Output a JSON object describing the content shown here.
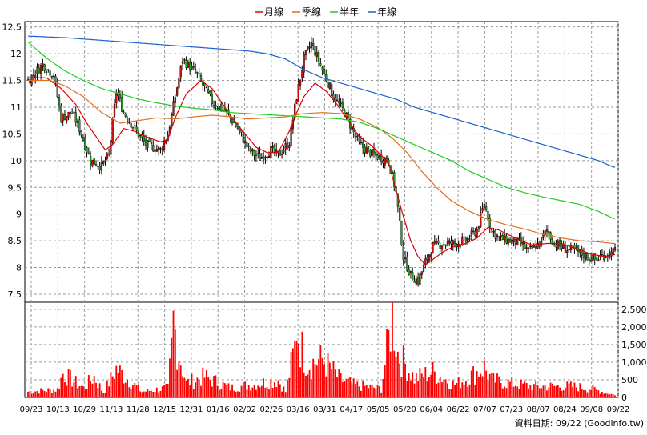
{
  "chart_data": {
    "type": "candlestick_with_volume",
    "legend": {
      "placement": "top-center",
      "entries": [
        {
          "label": "月線",
          "color": "#dd0000"
        },
        {
          "label": "季線",
          "color": "#e07020"
        },
        {
          "label": "半年",
          "color": "#22cc22"
        },
        {
          "label": "年線",
          "color": "#1a5fd0"
        }
      ]
    },
    "price_axis": {
      "ylim": [
        7.35,
        12.6
      ],
      "ticks": [
        "12.5",
        "12",
        "11.5",
        "11",
        "10.5",
        "10",
        "9.5",
        "9",
        "8.5",
        "8",
        "7.5"
      ],
      "tick_values": [
        12.5,
        12,
        11.5,
        11,
        10.5,
        10,
        9.5,
        9,
        8.5,
        8,
        7.5
      ]
    },
    "volume_axis": {
      "ylim": [
        0,
        2700
      ],
      "ticks": [
        "2,500",
        "2,000",
        "1,500",
        "1,000",
        "500",
        "0"
      ],
      "tick_values": [
        2500,
        2000,
        1500,
        1000,
        500,
        0
      ]
    },
    "x_ticks": [
      "09/23",
      "10/13",
      "10/29",
      "11/13",
      "11/28",
      "12/15",
      "12/31",
      "01/16",
      "02/02",
      "02/26",
      "03/16",
      "03/31",
      "04/17",
      "05/05",
      "05/20",
      "06/04",
      "06/22",
      "07/07",
      "07/23",
      "08/07",
      "08/24",
      "09/08",
      "09/22"
    ],
    "grid": true,
    "price_anchors": [
      [
        0,
        11.5
      ],
      [
        8,
        11.8
      ],
      [
        14,
        11.6
      ],
      [
        18,
        10.8
      ],
      [
        24,
        10.9
      ],
      [
        28,
        10.6
      ],
      [
        34,
        10.0
      ],
      [
        40,
        9.9
      ],
      [
        44,
        10.1
      ],
      [
        48,
        11.3
      ],
      [
        52,
        10.9
      ],
      [
        58,
        10.6
      ],
      [
        64,
        10.3
      ],
      [
        72,
        10.2
      ],
      [
        76,
        10.5
      ],
      [
        80,
        11.2
      ],
      [
        84,
        11.9
      ],
      [
        92,
        11.6
      ],
      [
        100,
        11.1
      ],
      [
        108,
        10.9
      ],
      [
        114,
        10.6
      ],
      [
        120,
        10.2
      ],
      [
        126,
        10.05
      ],
      [
        132,
        10.2
      ],
      [
        136,
        10.1
      ],
      [
        142,
        10.35
      ],
      [
        146,
        11.2
      ],
      [
        150,
        11.9
      ],
      [
        154,
        12.2
      ],
      [
        160,
        11.7
      ],
      [
        166,
        11.2
      ],
      [
        172,
        10.9
      ],
      [
        176,
        10.6
      ],
      [
        180,
        10.3
      ],
      [
        188,
        10.1
      ],
      [
        196,
        10.0
      ],
      [
        200,
        9.4
      ],
      [
        204,
        8.2
      ],
      [
        208,
        7.85
      ],
      [
        212,
        7.75
      ],
      [
        216,
        8.1
      ],
      [
        220,
        8.4
      ],
      [
        226,
        8.45
      ],
      [
        232,
        8.45
      ],
      [
        238,
        8.5
      ],
      [
        244,
        8.7
      ],
      [
        248,
        9.2
      ],
      [
        252,
        8.7
      ],
      [
        256,
        8.55
      ],
      [
        262,
        8.5
      ],
      [
        268,
        8.45
      ],
      [
        272,
        8.3
      ],
      [
        278,
        8.45
      ],
      [
        282,
        8.7
      ],
      [
        286,
        8.45
      ],
      [
        292,
        8.35
      ],
      [
        298,
        8.3
      ],
      [
        304,
        8.2
      ],
      [
        308,
        8.15
      ],
      [
        314,
        8.25
      ],
      [
        318,
        8.3
      ]
    ],
    "volume_anchors": [
      [
        0,
        180
      ],
      [
        16,
        250
      ],
      [
        19,
        750
      ],
      [
        30,
        300
      ],
      [
        36,
        650
      ],
      [
        41,
        150
      ],
      [
        48,
        900
      ],
      [
        62,
        180
      ],
      [
        76,
        300
      ],
      [
        78,
        1500
      ],
      [
        79,
        2400
      ],
      [
        81,
        1650
      ],
      [
        86,
        450
      ],
      [
        96,
        650
      ],
      [
        110,
        300
      ],
      [
        122,
        400
      ],
      [
        136,
        550
      ],
      [
        140,
        180
      ],
      [
        145,
        1550
      ],
      [
        146,
        2300
      ],
      [
        148,
        1650
      ],
      [
        152,
        1050
      ],
      [
        160,
        1200
      ],
      [
        170,
        550
      ],
      [
        178,
        380
      ],
      [
        192,
        280
      ],
      [
        198,
        2600
      ],
      [
        201,
        1400
      ],
      [
        210,
        600
      ],
      [
        220,
        800
      ],
      [
        232,
        400
      ],
      [
        240,
        650
      ],
      [
        248,
        950
      ],
      [
        252,
        550
      ],
      [
        262,
        450
      ],
      [
        274,
        350
      ],
      [
        286,
        350
      ],
      [
        296,
        350
      ],
      [
        306,
        280
      ],
      [
        318,
        90
      ]
    ],
    "series": [
      {
        "name": "月線",
        "anchors": [
          [
            0,
            11.55
          ],
          [
            10,
            11.55
          ],
          [
            18,
            11.35
          ],
          [
            26,
            11.05
          ],
          [
            32,
            10.7
          ],
          [
            38,
            10.4
          ],
          [
            42,
            10.2
          ],
          [
            46,
            10.3
          ],
          [
            52,
            10.6
          ],
          [
            58,
            10.55
          ],
          [
            64,
            10.45
          ],
          [
            72,
            10.35
          ],
          [
            76,
            10.4
          ],
          [
            80,
            10.8
          ],
          [
            86,
            11.25
          ],
          [
            94,
            11.5
          ],
          [
            100,
            11.35
          ],
          [
            106,
            11.05
          ],
          [
            112,
            10.75
          ],
          [
            118,
            10.5
          ],
          [
            124,
            10.25
          ],
          [
            130,
            10.15
          ],
          [
            136,
            10.15
          ],
          [
            142,
            10.55
          ],
          [
            146,
            10.9
          ],
          [
            150,
            11.2
          ],
          [
            156,
            11.45
          ],
          [
            162,
            11.3
          ],
          [
            168,
            11.05
          ],
          [
            174,
            10.75
          ],
          [
            180,
            10.45
          ],
          [
            186,
            10.3
          ],
          [
            192,
            10.1
          ],
          [
            196,
            9.95
          ],
          [
            200,
            9.45
          ],
          [
            204,
            8.95
          ],
          [
            208,
            8.5
          ],
          [
            212,
            8.2
          ],
          [
            216,
            8.05
          ],
          [
            220,
            8.15
          ],
          [
            226,
            8.3
          ],
          [
            232,
            8.4
          ],
          [
            238,
            8.45
          ],
          [
            244,
            8.55
          ],
          [
            250,
            8.75
          ],
          [
            256,
            8.7
          ],
          [
            262,
            8.6
          ],
          [
            268,
            8.5
          ],
          [
            274,
            8.42
          ],
          [
            282,
            8.45
          ],
          [
            290,
            8.45
          ],
          [
            298,
            8.35
          ],
          [
            306,
            8.25
          ],
          [
            314,
            8.2
          ],
          [
            318,
            8.24
          ]
        ]
      },
      {
        "name": "季線",
        "anchors": [
          [
            0,
            11.5
          ],
          [
            12,
            11.5
          ],
          [
            20,
            11.4
          ],
          [
            30,
            11.2
          ],
          [
            40,
            10.9
          ],
          [
            50,
            10.7
          ],
          [
            60,
            10.75
          ],
          [
            70,
            10.8
          ],
          [
            80,
            10.78
          ],
          [
            90,
            10.82
          ],
          [
            100,
            10.85
          ],
          [
            110,
            10.82
          ],
          [
            120,
            10.78
          ],
          [
            130,
            10.8
          ],
          [
            140,
            10.82
          ],
          [
            150,
            10.88
          ],
          [
            160,
            10.9
          ],
          [
            170,
            10.88
          ],
          [
            180,
            10.78
          ],
          [
            190,
            10.62
          ],
          [
            198,
            10.42
          ],
          [
            206,
            10.15
          ],
          [
            214,
            9.8
          ],
          [
            222,
            9.5
          ],
          [
            230,
            9.25
          ],
          [
            240,
            9.05
          ],
          [
            250,
            8.9
          ],
          [
            260,
            8.8
          ],
          [
            270,
            8.72
          ],
          [
            280,
            8.62
          ],
          [
            290,
            8.55
          ],
          [
            300,
            8.5
          ],
          [
            310,
            8.48
          ],
          [
            318,
            8.45
          ]
        ]
      },
      {
        "name": "半年",
        "anchors": [
          [
            0,
            12.22
          ],
          [
            10,
            11.92
          ],
          [
            20,
            11.68
          ],
          [
            30,
            11.5
          ],
          [
            40,
            11.35
          ],
          [
            50,
            11.25
          ],
          [
            60,
            11.15
          ],
          [
            70,
            11.08
          ],
          [
            80,
            11.02
          ],
          [
            90,
            10.98
          ],
          [
            100,
            10.95
          ],
          [
            110,
            10.9
          ],
          [
            120,
            10.88
          ],
          [
            130,
            10.86
          ],
          [
            140,
            10.84
          ],
          [
            150,
            10.82
          ],
          [
            160,
            10.8
          ],
          [
            170,
            10.78
          ],
          [
            180,
            10.72
          ],
          [
            190,
            10.6
          ],
          [
            200,
            10.45
          ],
          [
            210,
            10.3
          ],
          [
            220,
            10.15
          ],
          [
            230,
            10.0
          ],
          [
            240,
            9.8
          ],
          [
            250,
            9.65
          ],
          [
            260,
            9.5
          ],
          [
            270,
            9.4
          ],
          [
            280,
            9.32
          ],
          [
            290,
            9.25
          ],
          [
            300,
            9.18
          ],
          [
            310,
            9.05
          ],
          [
            318,
            8.92
          ]
        ]
      },
      {
        "name": "年線",
        "anchors": [
          [
            0,
            12.33
          ],
          [
            20,
            12.3
          ],
          [
            40,
            12.25
          ],
          [
            60,
            12.2
          ],
          [
            80,
            12.15
          ],
          [
            100,
            12.1
          ],
          [
            120,
            12.05
          ],
          [
            130,
            12.0
          ],
          [
            140,
            11.9
          ],
          [
            150,
            11.7
          ],
          [
            160,
            11.55
          ],
          [
            170,
            11.45
          ],
          [
            180,
            11.35
          ],
          [
            190,
            11.25
          ],
          [
            200,
            11.15
          ],
          [
            210,
            11.0
          ],
          [
            220,
            10.9
          ],
          [
            230,
            10.8
          ],
          [
            240,
            10.7
          ],
          [
            250,
            10.6
          ],
          [
            260,
            10.5
          ],
          [
            270,
            10.4
          ],
          [
            280,
            10.3
          ],
          [
            290,
            10.2
          ],
          [
            300,
            10.1
          ],
          [
            310,
            10.0
          ],
          [
            318,
            9.88
          ]
        ]
      }
    ],
    "footer": "資料日期: 09/22 (Goodinfo.tw)"
  }
}
